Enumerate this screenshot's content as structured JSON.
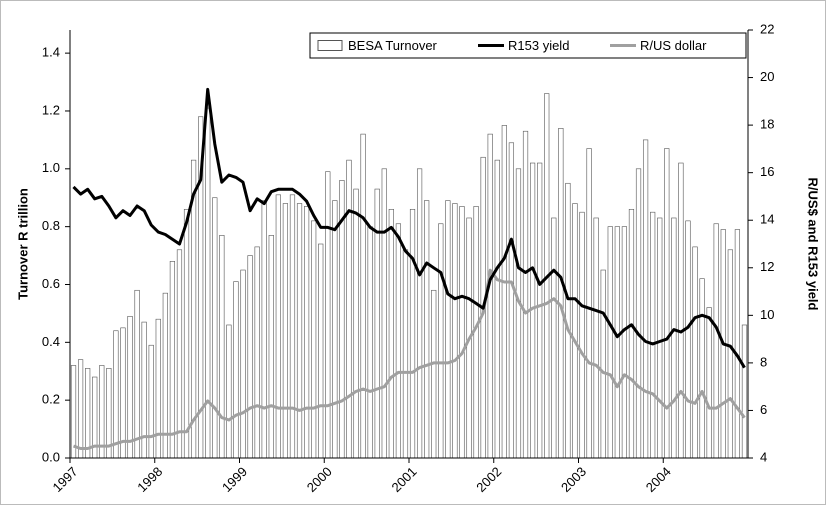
{
  "chart_data": {
    "type": "bar-line",
    "y_label": "Turnover R trillion",
    "y2_label": "R/US$ and R153 yield",
    "categories": [
      "1997",
      null,
      null,
      null,
      null,
      null,
      null,
      null,
      null,
      null,
      null,
      null,
      "1998",
      null,
      null,
      null,
      null,
      null,
      null,
      null,
      null,
      null,
      null,
      null,
      "1999",
      null,
      null,
      null,
      null,
      null,
      null,
      null,
      null,
      null,
      null,
      null,
      "2000",
      null,
      null,
      null,
      null,
      null,
      null,
      null,
      null,
      null,
      null,
      null,
      "2001",
      null,
      null,
      null,
      null,
      null,
      null,
      null,
      null,
      null,
      null,
      null,
      "2002",
      null,
      null,
      null,
      null,
      null,
      null,
      null,
      null,
      null,
      null,
      null,
      "2003",
      null,
      null,
      null,
      null,
      null,
      null,
      null,
      null,
      null,
      null,
      null,
      "2004",
      null,
      null,
      null,
      null,
      null,
      null,
      null,
      null,
      null,
      null,
      null
    ],
    "ylim": [
      0,
      1.48
    ],
    "yticks": [
      {
        "value": 0,
        "label": "0.0"
      },
      0.2,
      0.4,
      0.6,
      0.8,
      {
        "value": 1,
        "label": "1.0"
      },
      1.2,
      1.4
    ],
    "y2lim": [
      4,
      22
    ],
    "y2ticks": [
      4,
      6,
      8,
      10,
      12,
      14,
      16,
      18,
      20,
      22
    ],
    "legend": "top",
    "series": [
      {
        "name": "BESA Turnover",
        "kind": "bar",
        "color": "#ffffff",
        "values": [
          0.32,
          0.34,
          0.31,
          0.28,
          0.32,
          0.31,
          0.44,
          0.45,
          0.49,
          0.58,
          0.47,
          0.39,
          0.48,
          0.57,
          0.68,
          0.72,
          0.86,
          1.03,
          1.18,
          1.21,
          0.9,
          0.77,
          0.46,
          0.61,
          0.65,
          0.7,
          0.73,
          0.89,
          0.77,
          0.91,
          0.88,
          0.91,
          0.88,
          0.87,
          0.82,
          0.74,
          0.99,
          0.89,
          0.96,
          1.03,
          0.93,
          1.12,
          0.8,
          0.93,
          1.0,
          0.86,
          0.81,
          0.72,
          0.86,
          1.0,
          0.89,
          0.58,
          0.81,
          0.89,
          0.88,
          0.87,
          0.83,
          0.87,
          1.04,
          1.12,
          1.03,
          1.15,
          1.09,
          1.0,
          1.13,
          1.02,
          1.02,
          1.26,
          0.83,
          1.14,
          0.95,
          0.88,
          0.85,
          1.07,
          0.83,
          0.65,
          0.8,
          0.8,
          0.8,
          0.86,
          1.0,
          1.1,
          0.85,
          0.83,
          1.07,
          0.83,
          1.02,
          0.82,
          0.73,
          0.62,
          0.52,
          0.81,
          0.79,
          0.72,
          0.79,
          0.46
        ]
      },
      {
        "name": "R153 yield",
        "kind": "line",
        "axis": "y2",
        "color": "#000000",
        "values": [
          15.4,
          15.1,
          15.3,
          14.9,
          15.0,
          14.6,
          14.1,
          14.4,
          14.2,
          14.6,
          14.4,
          13.8,
          13.5,
          13.4,
          13.2,
          13.0,
          13.9,
          15.1,
          15.7,
          19.5,
          17.2,
          15.6,
          15.9,
          15.8,
          15.6,
          14.4,
          14.9,
          14.7,
          15.2,
          15.3,
          15.3,
          15.3,
          15.1,
          14.8,
          14.2,
          13.7,
          13.7,
          13.6,
          14.0,
          14.4,
          14.3,
          14.1,
          13.7,
          13.5,
          13.5,
          13.7,
          13.3,
          12.7,
          12.4,
          11.7,
          12.2,
          12.0,
          11.8,
          10.9,
          10.7,
          10.8,
          10.7,
          10.5,
          10.3,
          11.5,
          12.0,
          12.4,
          13.2,
          12.0,
          11.8,
          12.0,
          11.3,
          11.6,
          11.9,
          11.6,
          10.7,
          10.7,
          10.4,
          10.3,
          10.2,
          10.1,
          9.6,
          9.1,
          9.4,
          9.6,
          9.2,
          8.9,
          8.8,
          8.9,
          9.0,
          9.4,
          9.3,
          9.5,
          9.9,
          10.0,
          9.9,
          9.5,
          8.8,
          8.7,
          8.3,
          7.8
        ]
      },
      {
        "name": "R/US dollar",
        "kind": "line",
        "axis": "y2",
        "color": "#a0a0a0",
        "values": [
          4.5,
          4.4,
          4.4,
          4.5,
          4.5,
          4.5,
          4.6,
          4.7,
          4.7,
          4.8,
          4.9,
          4.9,
          5.0,
          5.0,
          5.0,
          5.1,
          5.1,
          5.6,
          6.0,
          6.4,
          6.1,
          5.7,
          5.6,
          5.8,
          5.9,
          6.1,
          6.2,
          6.1,
          6.2,
          6.1,
          6.1,
          6.1,
          6.0,
          6.1,
          6.1,
          6.2,
          6.2,
          6.3,
          6.4,
          6.6,
          6.8,
          6.9,
          6.8,
          6.9,
          7.0,
          7.4,
          7.6,
          7.6,
          7.6,
          7.8,
          7.9,
          8.0,
          8.0,
          8.0,
          8.1,
          8.4,
          9.0,
          9.5,
          10.1,
          11.9,
          11.5,
          11.4,
          11.4,
          10.6,
          10.1,
          10.3,
          10.4,
          10.5,
          10.7,
          10.4,
          9.4,
          8.9,
          8.4,
          8.0,
          7.9,
          7.6,
          7.5,
          7.0,
          7.5,
          7.3,
          7.0,
          6.8,
          6.7,
          6.4,
          6.1,
          6.4,
          6.8,
          6.4,
          6.3,
          6.8,
          6.1,
          6.1,
          6.3,
          6.5,
          6.1,
          5.7
        ]
      }
    ]
  }
}
